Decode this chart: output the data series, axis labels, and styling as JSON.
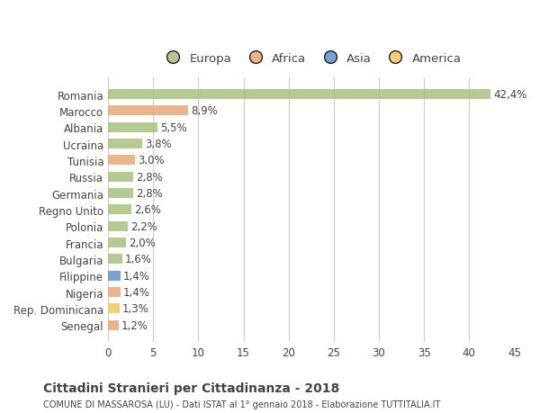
{
  "countries": [
    "Romania",
    "Marocco",
    "Albania",
    "Ucraina",
    "Tunisia",
    "Russia",
    "Germania",
    "Regno Unito",
    "Polonia",
    "Francia",
    "Bulgaria",
    "Filippine",
    "Nigeria",
    "Rep. Dominicana",
    "Senegal"
  ],
  "values": [
    42.4,
    8.9,
    5.5,
    3.8,
    3.0,
    2.8,
    2.8,
    2.6,
    2.2,
    2.0,
    1.6,
    1.4,
    1.4,
    1.3,
    1.2
  ],
  "labels": [
    "42,4%",
    "8,9%",
    "5,5%",
    "3,8%",
    "3,0%",
    "2,8%",
    "2,8%",
    "2,6%",
    "2,2%",
    "2,0%",
    "1,6%",
    "1,4%",
    "1,4%",
    "1,3%",
    "1,2%"
  ],
  "continents": [
    "Europa",
    "Africa",
    "Europa",
    "Europa",
    "Africa",
    "Europa",
    "Europa",
    "Europa",
    "Europa",
    "Europa",
    "Europa",
    "Asia",
    "Africa",
    "America",
    "Africa"
  ],
  "colors": {
    "Europa": "#a8c080",
    "Africa": "#e8a878",
    "Asia": "#6090c8",
    "America": "#f0c860"
  },
  "legend_order": [
    "Europa",
    "Africa",
    "Asia",
    "America"
  ],
  "legend_colors": [
    "#a8c080",
    "#e8a878",
    "#6090c8",
    "#f0c860"
  ],
  "xlim": [
    0,
    45
  ],
  "xticks": [
    0,
    5,
    10,
    15,
    20,
    25,
    30,
    35,
    40,
    45
  ],
  "title": "Cittadini Stranieri per Cittadinanza - 2018",
  "subtitle": "COMUNE DI MASSAROSA (LU) - Dati ISTAT al 1° gennaio 2018 - Elaborazione TUTTITALIA.IT",
  "bg_color": "#ffffff",
  "grid_color": "#cccccc",
  "bar_height": 0.6,
  "text_color": "#444444",
  "label_fontsize": 8.5,
  "tick_fontsize": 8.5
}
